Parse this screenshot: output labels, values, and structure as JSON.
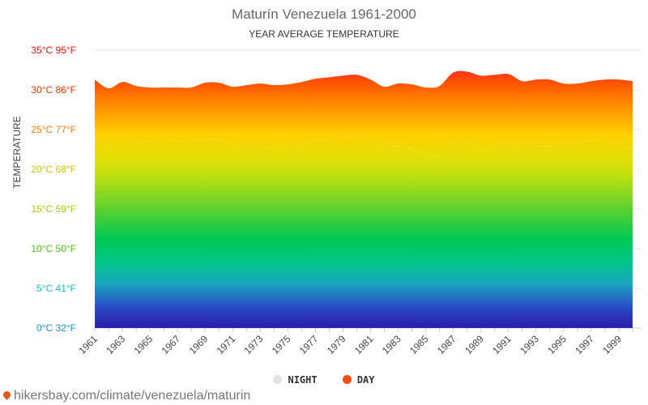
{
  "chart_data": {
    "type": "area",
    "title": "Maturín Venezuela 1961-2000",
    "subtitle": "YEAR AVERAGE TEMPERATURE",
    "ylabel": "TEMPERATURE",
    "ylim": [
      0,
      35
    ],
    "xlim": [
      1961,
      2000
    ],
    "y_ticks": [
      {
        "value": 0,
        "label": "0°C 32°F",
        "color": "#1e90cc"
      },
      {
        "value": 5,
        "label": "5°C 41°F",
        "color": "#16c1b6"
      },
      {
        "value": 10,
        "label": "10°C 50°F",
        "color": "#4fc218"
      },
      {
        "value": 15,
        "label": "15°C 59°F",
        "color": "#a9c80c"
      },
      {
        "value": 20,
        "label": "20°C 68°F",
        "color": "#d6c400"
      },
      {
        "value": 25,
        "label": "25°C 77°F",
        "color": "#ff7a00"
      },
      {
        "value": 30,
        "label": "30°C 86°F",
        "color": "#ee3300"
      },
      {
        "value": 35,
        "label": "35°C 95°F",
        "color": "#ee1111"
      }
    ],
    "x_tick_labels": [
      "1961",
      "1963",
      "1965",
      "1967",
      "1969",
      "1971",
      "1973",
      "1975",
      "1977",
      "1979",
      "1981",
      "1983",
      "1985",
      "1987",
      "1989",
      "1991",
      "1993",
      "1995",
      "1997",
      "1999"
    ],
    "x": [
      1961,
      1962,
      1963,
      1964,
      1965,
      1966,
      1967,
      1968,
      1969,
      1970,
      1971,
      1972,
      1973,
      1974,
      1975,
      1976,
      1977,
      1978,
      1979,
      1980,
      1981,
      1982,
      1983,
      1984,
      1985,
      1986,
      1987,
      1988,
      1989,
      1990,
      1991,
      1992,
      1993,
      1994,
      1995,
      1996,
      1997,
      1998,
      1999,
      2000
    ],
    "series": [
      {
        "name": "DAY",
        "color": "#ff4c0d",
        "values": [
          31.3,
          30.2,
          31.0,
          30.5,
          30.3,
          30.3,
          30.3,
          30.3,
          30.9,
          30.9,
          30.4,
          30.6,
          30.8,
          30.6,
          30.7,
          31.0,
          31.4,
          31.6,
          31.8,
          31.9,
          31.3,
          30.4,
          30.8,
          30.7,
          30.3,
          30.5,
          32.2,
          32.3,
          31.8,
          31.9,
          32.0,
          31.1,
          31.3,
          31.3,
          30.8,
          30.8,
          31.1,
          31.3,
          31.3,
          31.1
        ]
      },
      {
        "name": "NIGHT",
        "color": "#dddddd",
        "values": [
          24.1,
          22.9,
          24.1,
          23.4,
          23.6,
          23.9,
          23.5,
          23.5,
          23.8,
          23.7,
          22.6,
          23.0,
          22.8,
          22.7,
          22.7,
          23.1,
          23.6,
          23.9,
          24.1,
          24.2,
          23.6,
          22.8,
          22.9,
          22.5,
          22.0,
          21.8,
          23.3,
          23.4,
          22.5,
          22.8,
          23.4,
          22.7,
          22.9,
          22.9,
          23.2,
          23.2,
          23.7,
          23.8,
          22.8,
          22.6
        ]
      }
    ],
    "legend": {
      "position": "bottom"
    }
  },
  "legend": {
    "night": "NIGHT",
    "day": "DAY"
  },
  "footer": {
    "text": "hikersbay.com/climate/venezuela/maturin"
  }
}
